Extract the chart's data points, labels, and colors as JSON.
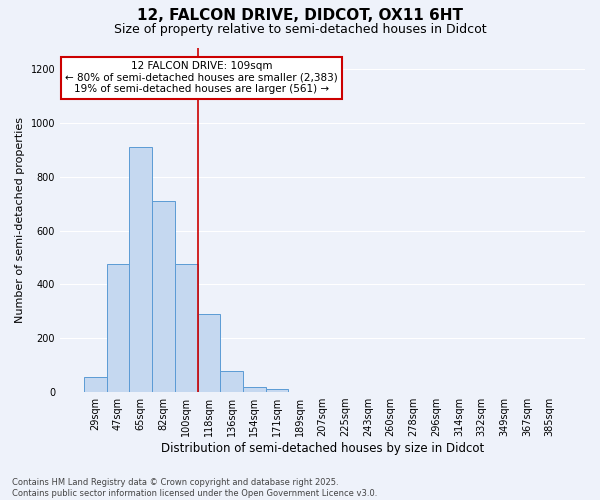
{
  "title": "12, FALCON DRIVE, DIDCOT, OX11 6HT",
  "subtitle": "Size of property relative to semi-detached houses in Didcot",
  "xlabel": "Distribution of semi-detached houses by size in Didcot",
  "ylabel": "Number of semi-detached properties",
  "categories": [
    "29sqm",
    "47sqm",
    "65sqm",
    "82sqm",
    "100sqm",
    "118sqm",
    "136sqm",
    "154sqm",
    "171sqm",
    "189sqm",
    "207sqm",
    "225sqm",
    "243sqm",
    "260sqm",
    "278sqm",
    "296sqm",
    "314sqm",
    "332sqm",
    "349sqm",
    "367sqm",
    "385sqm"
  ],
  "values": [
    55,
    475,
    910,
    710,
    475,
    290,
    80,
    20,
    10,
    0,
    0,
    0,
    0,
    0,
    0,
    0,
    0,
    0,
    0,
    0,
    0
  ],
  "bar_color": "#c5d8f0",
  "bar_edge_color": "#5b9bd5",
  "property_line_x": 4.5,
  "property_line_color": "#cc0000",
  "annotation_title": "12 FALCON DRIVE: 109sqm",
  "annotation_line1": "← 80% of semi-detached houses are smaller (2,383)",
  "annotation_line2": "19% of semi-detached houses are larger (561) →",
  "annotation_box_facecolor": "#ffffff",
  "annotation_box_edgecolor": "#cc0000",
  "ylim": [
    0,
    1280
  ],
  "yticks": [
    0,
    200,
    400,
    600,
    800,
    1000,
    1200
  ],
  "footer_line1": "Contains HM Land Registry data © Crown copyright and database right 2025.",
  "footer_line2": "Contains public sector information licensed under the Open Government Licence v3.0.",
  "bg_color": "#eef2fa",
  "grid_color": "#ffffff",
  "title_fontsize": 11,
  "subtitle_fontsize": 9,
  "axis_fontsize": 8,
  "tick_fontsize": 7,
  "annotation_fontsize": 7.5,
  "footer_fontsize": 6
}
